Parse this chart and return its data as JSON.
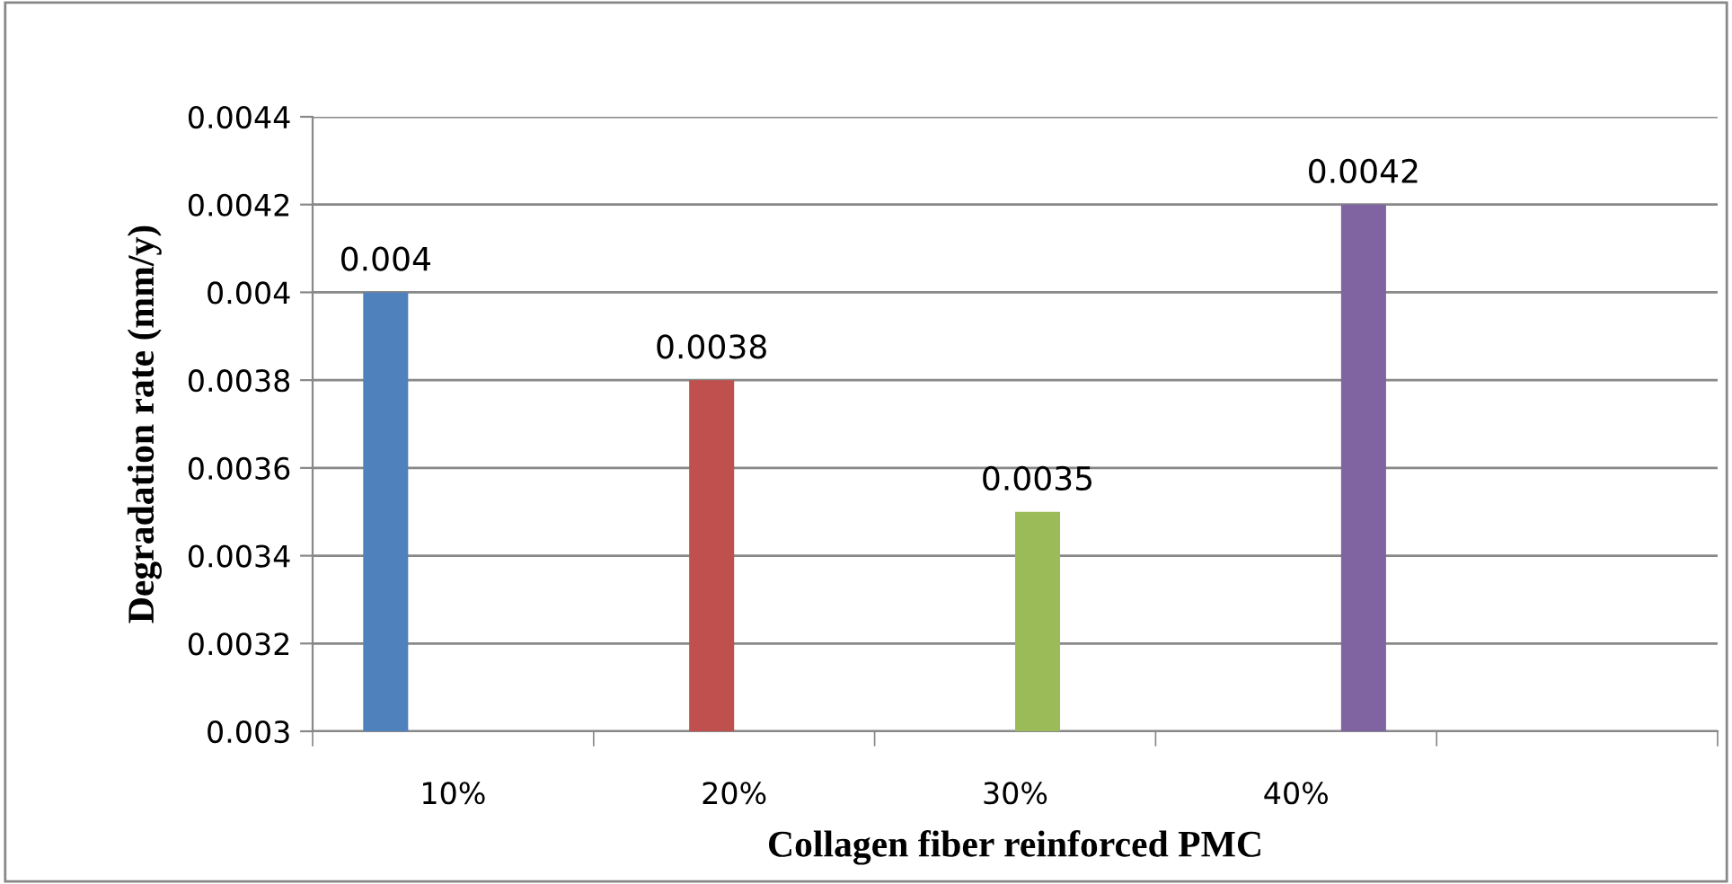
{
  "chart_data": {
    "type": "bar",
    "xlabel": "Collagen fiber reinforced PMC",
    "ylabel": "Degradation rate (mm/y)",
    "categories": [
      "10%",
      "20%",
      "30%",
      "40%",
      null
    ],
    "series": [
      {
        "color": "#4f81bd",
        "values": [
          0.004,
          null,
          null,
          null,
          null
        ]
      },
      {
        "color": "#c0504d",
        "values": [
          null,
          0.0038,
          null,
          null,
          null
        ]
      },
      {
        "color": "#9bbb59",
        "values": [
          null,
          null,
          0.0035,
          null,
          null
        ]
      },
      {
        "color": "#8064a2",
        "values": [
          null,
          null,
          null,
          0.0042,
          null
        ]
      }
    ],
    "ylim": [
      0.003,
      0.0044
    ],
    "yticks": [
      0.003,
      0.0032,
      0.0034,
      0.0036,
      0.0038,
      0.004,
      0.0042,
      0.0044
    ],
    "grid": "y",
    "legend": false,
    "data_labels": true
  }
}
